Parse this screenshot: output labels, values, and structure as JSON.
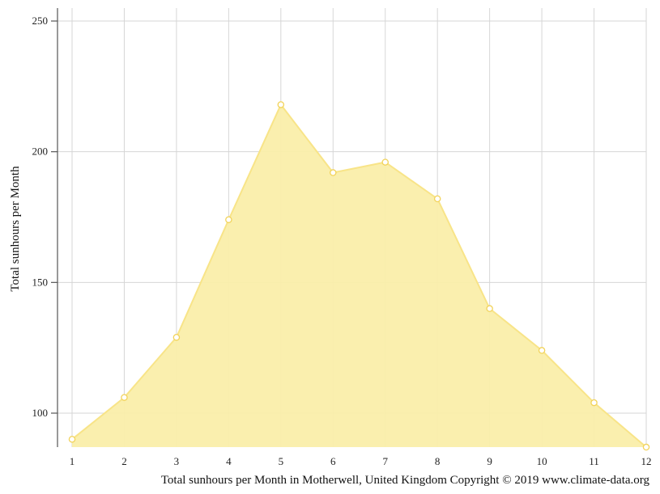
{
  "chart_data": {
    "type": "area",
    "x": [
      1,
      2,
      3,
      4,
      5,
      6,
      7,
      8,
      9,
      10,
      11,
      12
    ],
    "values": [
      90,
      106,
      129,
      174,
      218,
      192,
      196,
      182,
      140,
      124,
      104,
      87
    ],
    "x_ticks": [
      "1",
      "2",
      "3",
      "4",
      "5",
      "6",
      "7",
      "8",
      "9",
      "10",
      "11",
      "12"
    ],
    "y_ticks": [
      100,
      150,
      200,
      250
    ],
    "ylim": [
      87,
      255
    ],
    "xlim": [
      1,
      12
    ],
    "ylabel": "Total sunhours per Month",
    "caption": "Total sunhours per Month in Motherwell, United Kingdom Copyright © 2019 www.climate-data.org",
    "grid": true,
    "colors": {
      "fill": "#faeeaa",
      "line": "#f8e488",
      "marker_stroke": "#f2d35a"
    }
  }
}
